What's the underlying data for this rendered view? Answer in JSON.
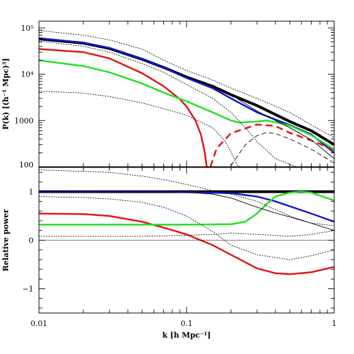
{
  "chart_data": [
    {
      "type": "line",
      "panel": "top",
      "xlabel": "",
      "ylabel": "P(k) [(h⁻¹ Mpc)³]",
      "xscale": "log",
      "yscale": "log",
      "xlim": [
        0.01,
        1
      ],
      "ylim": [
        100,
        140000
      ],
      "x_ticks": [
        {
          "value": 0.01,
          "label": ""
        },
        {
          "value": 0.1,
          "label": ""
        },
        {
          "value": 1,
          "label": ""
        }
      ],
      "y_ticks": [
        {
          "value": 100,
          "label": "100"
        },
        {
          "value": 1000,
          "label": "1000"
        },
        {
          "value": 10000,
          "label": "10⁴"
        },
        {
          "value": 100000,
          "label": "10⁵"
        }
      ],
      "series": [
        {
          "color": "#000000",
          "style": "solid",
          "weight": "thick",
          "points": [
            [
              0.01,
              58000
            ],
            [
              0.02,
              47000
            ],
            [
              0.03,
              36000
            ],
            [
              0.05,
              21000
            ],
            [
              0.07,
              14000
            ],
            [
              0.1,
              8700
            ],
            [
              0.15,
              5500
            ],
            [
              0.2,
              3600
            ],
            [
              0.3,
              2100
            ],
            [
              0.5,
              950
            ],
            [
              0.7,
              600
            ],
            [
              1,
              300
            ]
          ]
        },
        {
          "color": "#1515d0",
          "style": "solid",
          "weight": "medium",
          "points": [
            [
              0.01,
              60000
            ],
            [
              0.02,
              48000
            ],
            [
              0.03,
              37000
            ],
            [
              0.05,
              21000
            ],
            [
              0.07,
              14000
            ],
            [
              0.1,
              8300
            ],
            [
              0.15,
              5000
            ],
            [
              0.2,
              3000
            ],
            [
              0.3,
              1500
            ],
            [
              0.4,
              1050
            ],
            [
              0.5,
              800
            ],
            [
              0.7,
              500
            ],
            [
              1,
              200
            ]
          ]
        },
        {
          "color": "#e01515",
          "style": "solid",
          "weight": "medium",
          "points": [
            [
              0.01,
              35000
            ],
            [
              0.02,
              30000
            ],
            [
              0.03,
              22000
            ],
            [
              0.05,
              10500
            ],
            [
              0.07,
              5500
            ],
            [
              0.09,
              2900
            ],
            [
              0.1,
              2000
            ],
            [
              0.115,
              1000
            ],
            [
              0.125,
              500
            ],
            [
              0.133,
              200
            ],
            [
              0.137,
              100
            ]
          ]
        },
        {
          "color": "#e01515",
          "style": "dashed",
          "weight": "medium",
          "points": [
            [
              0.145,
              100
            ],
            [
              0.16,
              250
            ],
            [
              0.2,
              530
            ],
            [
              0.3,
              820
            ],
            [
              0.4,
              760
            ],
            [
              0.5,
              540
            ],
            [
              0.7,
              370
            ],
            [
              1,
              230
            ]
          ]
        },
        {
          "color": "#22e022",
          "style": "solid",
          "weight": "medium",
          "points": [
            [
              0.01,
              20000
            ],
            [
              0.02,
              15000
            ],
            [
              0.03,
              11000
            ],
            [
              0.05,
              6300
            ],
            [
              0.07,
              4000
            ],
            [
              0.1,
              2600
            ],
            [
              0.15,
              1500
            ],
            [
              0.2,
              1000
            ],
            [
              0.23,
              900
            ],
            [
              0.3,
              950
            ],
            [
              0.35,
              1000
            ],
            [
              0.5,
              780
            ],
            [
              0.7,
              480
            ],
            [
              1,
              240
            ]
          ]
        },
        {
          "color": "#000000",
          "style": "solid",
          "weight": "thin",
          "points": [
            [
              0.2,
              3600
            ],
            [
              0.3,
              1600
            ],
            [
              0.4,
              1000
            ],
            [
              0.5,
              700
            ],
            [
              0.7,
              380
            ],
            [
              1,
              150
            ]
          ]
        },
        {
          "color": "#000000",
          "style": "dotted",
          "weight": "thin",
          "points": [
            [
              0.01,
              88000
            ],
            [
              0.02,
              70000
            ],
            [
              0.03,
              55000
            ],
            [
              0.05,
              35000
            ],
            [
              0.07,
              20000
            ],
            [
              0.1,
              12000
            ],
            [
              0.15,
              7500
            ],
            [
              0.2,
              5000
            ],
            [
              0.3,
              3000
            ],
            [
              0.5,
              1500
            ],
            [
              0.7,
              800
            ],
            [
              1,
              430
            ]
          ]
        },
        {
          "color": "#000000",
          "style": "dotted",
          "weight": "thin",
          "points": [
            [
              0.01,
              52000
            ],
            [
              0.02,
              40000
            ],
            [
              0.03,
              30000
            ],
            [
              0.05,
              17000
            ],
            [
              0.07,
              11000
            ],
            [
              0.1,
              6000
            ],
            [
              0.15,
              3000
            ],
            [
              0.2,
              1500
            ],
            [
              0.25,
              700
            ],
            [
              0.3,
              350
            ],
            [
              0.4,
              150
            ],
            [
              0.55,
              100
            ]
          ]
        },
        {
          "color": "#000000",
          "style": "dotted",
          "weight": "thin",
          "points": [
            [
              0.01,
              4300
            ],
            [
              0.02,
              3900
            ],
            [
              0.03,
              3300
            ],
            [
              0.05,
              2400
            ],
            [
              0.07,
              1800
            ],
            [
              0.1,
              1300
            ],
            [
              0.15,
              700
            ],
            [
              0.18,
              380
            ],
            [
              0.2,
              210
            ],
            [
              0.22,
              110
            ],
            [
              0.23,
              100
            ]
          ]
        },
        {
          "color": "#000000",
          "style": "longdash",
          "weight": "thin",
          "points": [
            [
              0.2,
              105
            ],
            [
              0.25,
              300
            ],
            [
              0.3,
              470
            ],
            [
              0.35,
              550
            ],
            [
              0.4,
              520
            ],
            [
              0.5,
              400
            ],
            [
              0.7,
              240
            ],
            [
              1,
              120
            ]
          ]
        }
      ]
    },
    {
      "type": "line",
      "panel": "bottom",
      "xlabel": "k [h Mpc⁻¹]",
      "ylabel": "Relative power",
      "xscale": "log",
      "yscale": "linear",
      "xlim": [
        0.01,
        1
      ],
      "ylim": [
        -1.5,
        1.5
      ],
      "x_ticks": [
        {
          "value": 0.01,
          "label": "0.01"
        },
        {
          "value": 0.1,
          "label": "0.1"
        },
        {
          "value": 1,
          "label": "1"
        }
      ],
      "y_ticks": [
        {
          "value": -1,
          "label": "−1"
        },
        {
          "value": 0,
          "label": "0"
        },
        {
          "value": 1,
          "label": "1"
        }
      ],
      "series": [
        {
          "color": "#000000",
          "style": "solid",
          "weight": "thick",
          "points": [
            [
              0.01,
              1
            ],
            [
              1,
              1
            ]
          ]
        },
        {
          "color": "#1515d0",
          "style": "solid",
          "weight": "medium",
          "points": [
            [
              0.01,
              1
            ],
            [
              0.05,
              1
            ],
            [
              0.1,
              0.99
            ],
            [
              0.2,
              0.97
            ],
            [
              0.3,
              0.9
            ],
            [
              0.4,
              0.8
            ],
            [
              0.5,
              0.7
            ],
            [
              0.7,
              0.55
            ],
            [
              1,
              0.38
            ]
          ]
        },
        {
          "color": "#e01515",
          "style": "solid",
          "weight": "medium",
          "points": [
            [
              0.01,
              0.55
            ],
            [
              0.02,
              0.54
            ],
            [
              0.03,
              0.5
            ],
            [
              0.05,
              0.38
            ],
            [
              0.07,
              0.26
            ],
            [
              0.1,
              0.12
            ],
            [
              0.15,
              -0.1
            ],
            [
              0.2,
              -0.3
            ],
            [
              0.3,
              -0.58
            ],
            [
              0.4,
              -0.68
            ],
            [
              0.5,
              -0.7
            ],
            [
              0.7,
              -0.66
            ],
            [
              1,
              -0.55
            ]
          ]
        },
        {
          "color": "#22e022",
          "style": "solid",
          "weight": "medium",
          "points": [
            [
              0.01,
              0.32
            ],
            [
              0.05,
              0.32
            ],
            [
              0.1,
              0.32
            ],
            [
              0.2,
              0.33
            ],
            [
              0.25,
              0.38
            ],
            [
              0.3,
              0.55
            ],
            [
              0.35,
              0.75
            ],
            [
              0.4,
              0.9
            ],
            [
              0.5,
              0.98
            ],
            [
              0.6,
              1
            ],
            [
              0.7,
              0.98
            ],
            [
              0.8,
              0.92
            ],
            [
              1,
              0.82
            ]
          ]
        },
        {
          "color": "#000000",
          "style": "solid",
          "weight": "thin",
          "points": [
            [
              0.01,
              1
            ],
            [
              0.1,
              0.99
            ],
            [
              0.15,
              0.95
            ],
            [
              0.2,
              0.87
            ],
            [
              0.3,
              0.68
            ],
            [
              0.4,
              0.56
            ],
            [
              0.5,
              0.48
            ],
            [
              0.7,
              0.35
            ],
            [
              1,
              0.2
            ]
          ]
        },
        {
          "color": "#000000",
          "style": "solid",
          "weight": "hairline",
          "points": [
            [
              0.01,
              0
            ],
            [
              1,
              0
            ]
          ]
        },
        {
          "color": "#000000",
          "style": "dotted",
          "weight": "thin",
          "points": [
            [
              0.01,
              1.45
            ],
            [
              0.03,
              1.4
            ],
            [
              0.05,
              1.32
            ],
            [
              0.07,
              1.25
            ],
            [
              0.1,
              1.15
            ],
            [
              0.15,
              1.02
            ],
            [
              0.2,
              0.95
            ],
            [
              0.3,
              0.8
            ],
            [
              0.5,
              0.5
            ],
            [
              0.7,
              0.35
            ],
            [
              1,
              0.3
            ]
          ]
        },
        {
          "color": "#000000",
          "style": "dotted",
          "weight": "thin",
          "points": [
            [
              0.01,
              0.9
            ],
            [
              0.02,
              0.88
            ],
            [
              0.03,
              0.85
            ],
            [
              0.05,
              0.78
            ],
            [
              0.07,
              0.68
            ],
            [
              0.1,
              0.5
            ],
            [
              0.15,
              0.18
            ],
            [
              0.2,
              -0.1
            ],
            [
              0.3,
              -0.3
            ],
            [
              0.5,
              -0.4
            ],
            [
              0.7,
              -0.32
            ],
            [
              1,
              -0.2
            ]
          ]
        },
        {
          "color": "#000000",
          "style": "dotted",
          "weight": "thin",
          "points": [
            [
              0.01,
              0.08
            ],
            [
              0.05,
              0.08
            ],
            [
              0.1,
              0.1
            ],
            [
              0.15,
              0.12
            ],
            [
              0.2,
              0.15
            ],
            [
              0.3,
              0.12
            ],
            [
              0.5,
              0.08
            ],
            [
              0.7,
              0.12
            ],
            [
              1,
              0.2
            ]
          ]
        }
      ]
    }
  ]
}
